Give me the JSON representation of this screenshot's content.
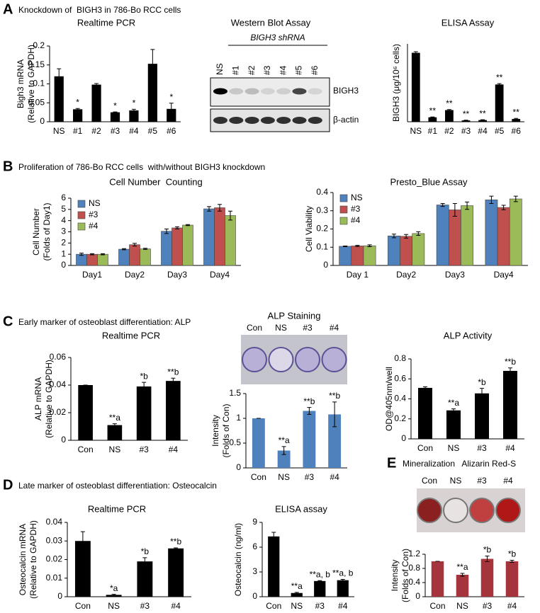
{
  "panels": [
    {
      "letter": "A",
      "title": "Knockdown of  BIGH3 in 786-Bo RCC cells"
    },
    {
      "letter": "B",
      "title": "Proliferation of 786-Bo RCC cells  with/without BIGH3 knockdown"
    },
    {
      "letter": "C",
      "title": "Early marker of osteoblast differentiation: ALP"
    },
    {
      "letter": "D",
      "title": "Late marker of osteoblast differentiation: Osteocalcin"
    },
    {
      "letter": "E",
      "title": "Mineralization   Alizarin Red-S"
    }
  ],
  "images": {
    "western_blot": {
      "title": "Western Blot Assay",
      "subtitle": "BIGH3 shRNA",
      "lanes": [
        "NS",
        "#1",
        "#2",
        "#3",
        "#4",
        "#5",
        "#6"
      ],
      "bands": [
        "BIGH3",
        "β-actin"
      ]
    },
    "alp_staining": {
      "title": "ALP Staining",
      "wells": [
        "Con",
        "NS",
        "#3",
        "#4"
      ]
    },
    "alizarin": {
      "wells": [
        "Con",
        "NS",
        "#3",
        "#4"
      ]
    }
  },
  "chart_data": [
    {
      "type": "bar",
      "title": "Realtime PCR",
      "ylabel": [
        "Bigh3 mRNA",
        "(Relative to GAPDH)"
      ],
      "categories": [
        "NS",
        "#1",
        "#2",
        "#3",
        "#4",
        "#5",
        "#6"
      ],
      "values": [
        0.12,
        0.033,
        0.098,
        0.025,
        0.03,
        0.153,
        0.034
      ],
      "errors": [
        0.02,
        0.002,
        0.003,
        0.001,
        0.003,
        0.038,
        0.015
      ],
      "annotations": [
        null,
        "*",
        null,
        "*",
        "*",
        null,
        "*"
      ],
      "color": "#000000",
      "ylim": [
        0,
        0.2
      ],
      "yticks": [
        0,
        0.05,
        0.1,
        0.15,
        0.2
      ]
    },
    {
      "type": "bar",
      "title": "ELISA Assay",
      "ylabel": [
        "BIGH3 (μg/10⁶ cells)"
      ],
      "categories": [
        "NS",
        "#1",
        "#2",
        "#3",
        "#4",
        "#5",
        "#6"
      ],
      "values": [
        6.2,
        0.4,
        1.05,
        0.12,
        0.15,
        3.35,
        0.25
      ],
      "errors": [
        0.1,
        0.03,
        0.05,
        0.02,
        0.03,
        0.08,
        0.05
      ],
      "annotations": [
        null,
        "**",
        "**",
        "**",
        "**",
        "**",
        "**"
      ],
      "color": "#000000",
      "ylim": [
        0,
        7
      ]
    },
    {
      "type": "bar",
      "title": "Cell Number  Counting",
      "ylabel": [
        "Cell Number",
        "(Folds of Day1)"
      ],
      "categories": [
        "Day1",
        "Day2",
        "Day3",
        "Day4"
      ],
      "series": [
        {
          "name": "NS",
          "color": "#4f81bd",
          "values": [
            1.0,
            1.45,
            3.05,
            5.05
          ],
          "errors": [
            0.1,
            0.05,
            0.2,
            0.2
          ]
        },
        {
          "name": "#3",
          "color": "#c0504d",
          "values": [
            1.0,
            1.85,
            3.35,
            5.15
          ],
          "errors": [
            0.05,
            0.12,
            0.1,
            0.3
          ]
        },
        {
          "name": "#4",
          "color": "#9bbb59",
          "values": [
            1.0,
            1.48,
            3.6,
            4.45
          ],
          "errors": [
            0.05,
            0.05,
            0.05,
            0.4
          ]
        }
      ],
      "legend": "upper left",
      "ylim": [
        0,
        6
      ],
      "yticks": [
        0,
        1,
        2,
        3,
        4,
        5,
        6
      ]
    },
    {
      "type": "bar",
      "title": "Presto_Blue Assay",
      "ylabel": [
        "Cell Viability"
      ],
      "categories": [
        "Day 1",
        "Day2",
        "Day3",
        "Day4"
      ],
      "series": [
        {
          "name": "NS",
          "color": "#4f81bd",
          "values": [
            0.105,
            0.162,
            0.332,
            0.36
          ],
          "errors": [
            0.002,
            0.01,
            0.008,
            0.02
          ]
        },
        {
          "name": "#3",
          "color": "#c0504d",
          "values": [
            0.107,
            0.16,
            0.305,
            0.318
          ],
          "errors": [
            0.003,
            0.01,
            0.035,
            0.012
          ]
        },
        {
          "name": "#4",
          "color": "#9bbb59",
          "values": [
            0.108,
            0.175,
            0.328,
            0.365
          ],
          "errors": [
            0.005,
            0.01,
            0.02,
            0.015
          ]
        }
      ],
      "legend": "upper left",
      "ylim": [
        0,
        0.4
      ],
      "yticks": [
        0,
        0.1,
        0.2,
        0.3,
        0.4
      ]
    },
    {
      "type": "bar",
      "title": "Realtime PCR",
      "ylabel": [
        "ALP mRNA",
        "(Relative to GAPDH)"
      ],
      "categories": [
        "Con",
        "NS",
        "#3",
        "#4"
      ],
      "values": [
        0.04,
        0.011,
        0.039,
        0.043
      ],
      "errors": [
        0,
        0.001,
        0.003,
        0.002
      ],
      "annotations": [
        null,
        "**a",
        "*b",
        "**b"
      ],
      "color": "#000000",
      "ylim": [
        0,
        0.06
      ],
      "yticks": [
        0,
        0.02,
        0.04,
        0.06
      ]
    },
    {
      "type": "bar",
      "ylabel": [
        "Intensity",
        "(Folds of Con)"
      ],
      "categories": [
        "Con",
        "NS",
        "#3",
        "#4"
      ],
      "values": [
        1,
        0.35,
        1.15,
        1.08
      ],
      "errors": [
        0,
        0.08,
        0.07,
        0.25
      ],
      "annotations": [
        null,
        "**a",
        "**b",
        "**b"
      ],
      "color": "#4f81bd",
      "ylim": [
        0,
        1.5
      ],
      "yticks": [
        0,
        0.5,
        1,
        1.5
      ]
    },
    {
      "type": "bar",
      "title": "ALP Activity",
      "ylabel": [
        "OD@405nm/well"
      ],
      "categories": [
        "Con",
        "NS",
        "#3",
        "#4"
      ],
      "values": [
        0.51,
        0.285,
        0.455,
        0.68
      ],
      "errors": [
        0.01,
        0.015,
        0.05,
        0.03
      ],
      "annotations": [
        null,
        "**a",
        "*b",
        "**b"
      ],
      "color": "#000000",
      "ylim": [
        0,
        0.8
      ],
      "yticks": [
        0,
        0.2,
        0.4,
        0.6,
        0.8
      ]
    },
    {
      "type": "bar",
      "title": "Realtime PCR",
      "ylabel": [
        "Osteocalcin mRNA",
        "(Relative to GAPDH)"
      ],
      "categories": [
        "Con",
        "NS",
        "#3",
        "#4"
      ],
      "values": [
        0.03,
        0.001,
        0.019,
        0.026
      ],
      "errors": [
        0.005,
        0.0003,
        0.002,
        0.0003
      ],
      "annotations": [
        null,
        "*a",
        "*b",
        "**b"
      ],
      "color": "#000000",
      "ylim": [
        0,
        0.04
      ],
      "yticks": [
        0,
        0.01,
        0.02,
        0.03,
        0.04
      ]
    },
    {
      "type": "bar",
      "title": "ELISA assay",
      "ylabel": [
        "Osteocalcin (ng/ml)"
      ],
      "categories": [
        "Con",
        "NS",
        "#3",
        "#4"
      ],
      "values": [
        7.3,
        0.45,
        1.9,
        2.0
      ],
      "errors": [
        0.5,
        0.08,
        0.05,
        0.1
      ],
      "annotations": [
        null,
        "**a",
        "**a, b",
        "**a, b"
      ],
      "color": "#000000",
      "ylim": [
        0,
        9
      ],
      "yticks": [
        0,
        3,
        6,
        9
      ]
    },
    {
      "type": "bar",
      "ylabel": [
        "Intensity",
        "(Folds of Con)"
      ],
      "categories": [
        "Con",
        "NS",
        "#3",
        "#4"
      ],
      "values": [
        1.0,
        0.62,
        1.07,
        1.0
      ],
      "errors": [
        0,
        0.04,
        0.08,
        0.03
      ],
      "annotations": [
        null,
        "**a",
        "*b",
        "*b"
      ],
      "color": "#a6343c",
      "ylim": [
        0,
        1.2
      ],
      "yticks": [
        0,
        0.4,
        0.8,
        1.2
      ]
    }
  ]
}
